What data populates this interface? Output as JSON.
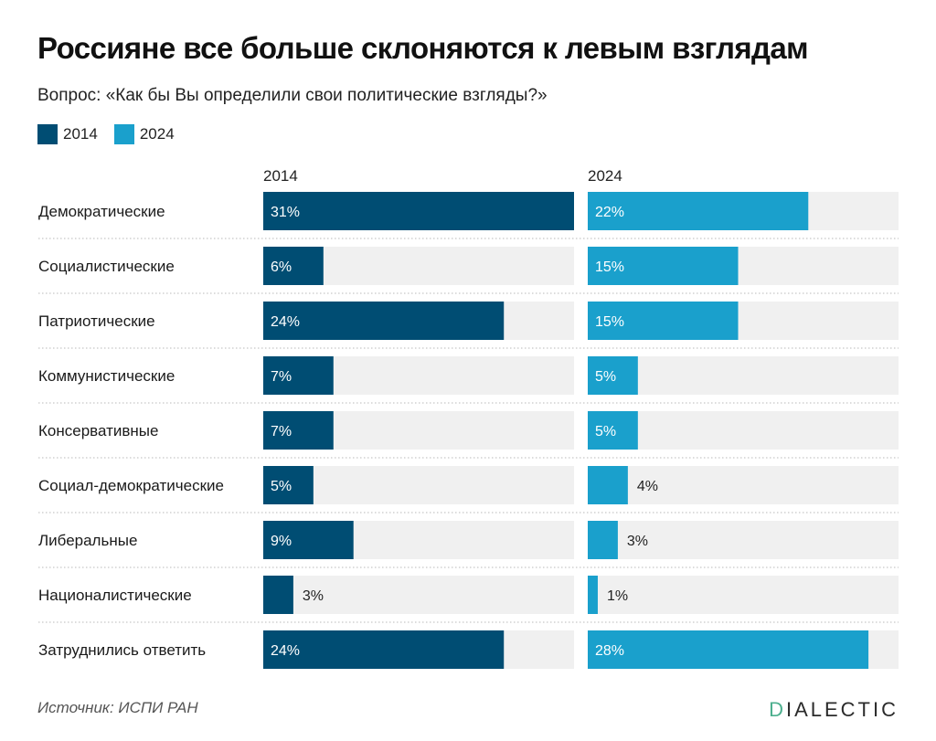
{
  "header": {
    "title": "Россияне все больше склоняются к левым взглядам",
    "subtitle": "Вопрос: «Как бы Вы определили свои политические взгляды?»"
  },
  "legend": [
    {
      "label": "2014",
      "color": "#004d73"
    },
    {
      "label": "2024",
      "color": "#1aa0cc"
    }
  ],
  "footer": {
    "source": "Источник: ИСПИ РАН",
    "brand_first": "D",
    "brand_rest": "IALECTIC"
  },
  "colors": {
    "track": "#f0f0f0",
    "divider": "#b8b8b8"
  },
  "chart_data": {
    "type": "bar",
    "orientation": "horizontal",
    "categories": [
      "Демократические",
      "Социалистические",
      "Патриотические",
      "Коммунистические",
      "Консервативные",
      "Социал-демократические",
      "Либеральные",
      "Националистические",
      "Затруднились ответить"
    ],
    "series": [
      {
        "name": "2014",
        "color": "#004d73",
        "values": [
          31,
          6,
          24,
          7,
          7,
          5,
          9,
          3,
          24
        ],
        "labels": [
          "31%",
          "6%",
          "24%",
          "7%",
          "7%",
          "5%",
          "9%",
          "3%",
          "24%"
        ]
      },
      {
        "name": "2024",
        "color": "#1aa0cc",
        "values": [
          22,
          15,
          15,
          5,
          5,
          4,
          3,
          1,
          28
        ],
        "labels": [
          "22%",
          "15%",
          "15%",
          "5%",
          "5%",
          "4%",
          "3%",
          "1%",
          "28%"
        ]
      }
    ],
    "xlim": [
      0,
      31
    ],
    "unit": "%"
  }
}
